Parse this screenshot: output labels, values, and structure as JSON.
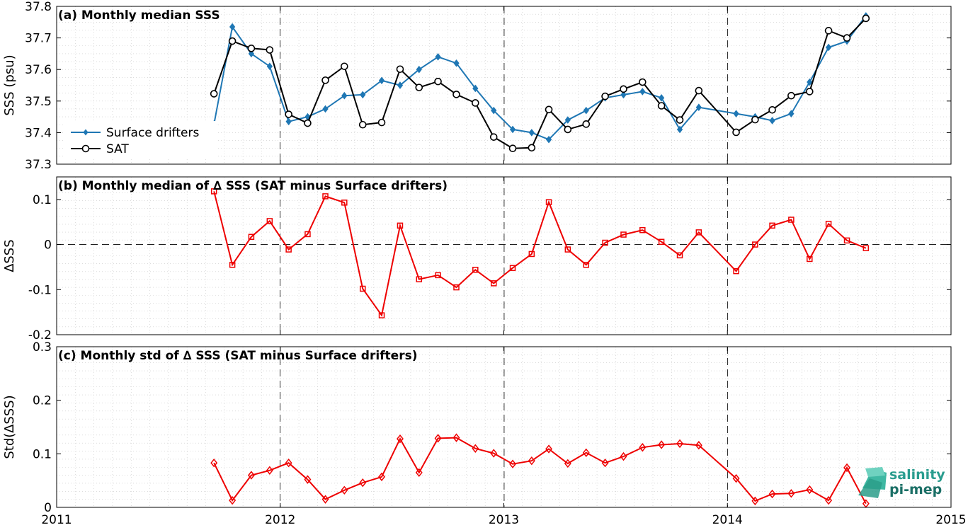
{
  "x_ticks": [
    "2011",
    "2012",
    "2013",
    "2014",
    "2015"
  ],
  "logo": {
    "line1": "salinity",
    "line2": "pi-mep"
  },
  "chart_data": [
    {
      "type": "line",
      "title": "(a) Monthly median SSS",
      "ylabel": "SSS (psu)",
      "xlim": [
        "2011-01-01",
        "2015-01-01"
      ],
      "ylim": [
        37.3,
        37.8
      ],
      "yticks": [
        "37.3",
        "37.4",
        "37.5",
        "37.6",
        "37.7",
        "37.8"
      ],
      "grid": true,
      "legend": "left",
      "series": [
        {
          "name": "Surface drifters",
          "color": "#1f77b4",
          "marker": "diamond-filled",
          "x": [
            "2011-09-15",
            "2011-10-15",
            "2011-11-15",
            "2011-12-15",
            "2012-01-15",
            "2012-02-15",
            "2012-03-15",
            "2012-04-15",
            "2012-05-15",
            "2012-06-15",
            "2012-07-15",
            "2012-08-15",
            "2012-09-15",
            "2012-10-15",
            "2012-11-15",
            "2012-12-15",
            "2013-01-15",
            "2013-02-15",
            "2013-03-15",
            "2013-04-15",
            "2013-05-15",
            "2013-06-15",
            "2013-07-15",
            "2013-08-15",
            "2013-09-15",
            "2013-10-15",
            "2013-11-15",
            "2014-01-15",
            "2014-02-15",
            "2014-03-15",
            "2014-04-15",
            "2014-05-15",
            "2014-06-15",
            "2014-07-15",
            "2014-08-15"
          ],
          "values": [
            37.427,
            37.735,
            37.65,
            37.61,
            37.435,
            37.45,
            37.475,
            37.517,
            37.52,
            37.565,
            37.55,
            37.6,
            37.64,
            37.62,
            37.54,
            37.47,
            37.41,
            37.4,
            37.378,
            37.44,
            37.47,
            37.51,
            37.52,
            37.53,
            37.51,
            37.41,
            37.48,
            37.46,
            37.45,
            37.438,
            37.46,
            37.56,
            37.67,
            37.69,
            37.77
          ]
        },
        {
          "name": "SAT",
          "color": "#000000",
          "marker": "circle-open",
          "x": [
            "2011-09-15",
            "2011-10-15",
            "2011-11-15",
            "2011-12-15",
            "2012-01-15",
            "2012-02-15",
            "2012-03-15",
            "2012-04-15",
            "2012-05-15",
            "2012-06-15",
            "2012-07-15",
            "2012-08-15",
            "2012-09-15",
            "2012-10-15",
            "2012-11-15",
            "2012-12-15",
            "2013-01-15",
            "2013-02-15",
            "2013-03-15",
            "2013-04-15",
            "2013-05-15",
            "2013-06-15",
            "2013-07-15",
            "2013-08-15",
            "2013-09-15",
            "2013-10-15",
            "2013-11-15",
            "2014-01-15",
            "2014-02-15",
            "2014-03-15",
            "2014-04-15",
            "2014-05-15",
            "2014-06-15",
            "2014-07-15",
            "2014-08-15"
          ],
          "values": [
            37.523,
            37.69,
            37.667,
            37.662,
            37.458,
            37.43,
            37.566,
            37.61,
            37.425,
            37.432,
            37.601,
            37.543,
            37.562,
            37.521,
            37.494,
            37.386,
            37.35,
            37.352,
            37.473,
            37.41,
            37.427,
            37.515,
            37.538,
            37.56,
            37.485,
            37.44,
            37.533,
            37.401,
            37.441,
            37.472,
            37.517,
            37.53,
            37.723,
            37.7,
            37.762
          ]
        }
      ]
    },
    {
      "type": "line",
      "title": "(b) Monthly median of ∆ SSS (SAT minus Surface drifters)",
      "ylabel": "∆SSS",
      "xlim": [
        "2011-01-01",
        "2015-01-01"
      ],
      "ylim": [
        -0.2,
        0.15
      ],
      "yticks": [
        "-0.2",
        "-0.1",
        "0",
        "0.1"
      ],
      "grid": true,
      "zero_line": true,
      "series": [
        {
          "color": "#ee0000",
          "marker": "square-open",
          "x": [
            "2011-09-15",
            "2011-10-15",
            "2011-11-15",
            "2011-12-15",
            "2012-01-15",
            "2012-02-15",
            "2012-03-15",
            "2012-04-15",
            "2012-05-15",
            "2012-06-15",
            "2012-07-15",
            "2012-08-15",
            "2012-09-15",
            "2012-10-15",
            "2012-11-15",
            "2012-12-15",
            "2013-01-15",
            "2013-02-15",
            "2013-03-15",
            "2013-04-15",
            "2013-05-15",
            "2013-06-15",
            "2013-07-15",
            "2013-08-15",
            "2013-09-15",
            "2013-10-15",
            "2013-11-15",
            "2014-01-15",
            "2014-02-15",
            "2014-03-15",
            "2014-04-15",
            "2014-05-15",
            "2014-06-15",
            "2014-07-15",
            "2014-08-15"
          ],
          "values": [
            0.118,
            -0.045,
            0.017,
            0.052,
            -0.011,
            0.023,
            0.107,
            0.093,
            -0.098,
            -0.157,
            0.042,
            -0.077,
            -0.068,
            -0.095,
            -0.056,
            -0.086,
            -0.052,
            -0.021,
            0.094,
            -0.011,
            -0.045,
            0.004,
            0.022,
            0.032,
            0.006,
            -0.024,
            0.027,
            -0.059,
            0.0,
            0.042,
            0.055,
            -0.032,
            0.046,
            0.009,
            -0.008
          ]
        }
      ]
    },
    {
      "type": "line",
      "title": "(c) Monthly std of ∆ SSS (SAT minus Surface drifters)",
      "ylabel": "Std(∆SSS)",
      "xlim": [
        "2011-01-01",
        "2015-01-01"
      ],
      "ylim": [
        0,
        0.3
      ],
      "yticks": [
        "0",
        "0.1",
        "0.2",
        "0.3"
      ],
      "grid": true,
      "series": [
        {
          "color": "#ee0000",
          "marker": "diamond-open",
          "x": [
            "2011-09-15",
            "2011-10-15",
            "2011-11-15",
            "2011-12-15",
            "2012-01-15",
            "2012-02-15",
            "2012-03-15",
            "2012-04-15",
            "2012-05-15",
            "2012-06-15",
            "2012-07-15",
            "2012-08-15",
            "2012-09-15",
            "2012-10-15",
            "2012-11-15",
            "2012-12-15",
            "2013-01-15",
            "2013-02-15",
            "2013-03-15",
            "2013-04-15",
            "2013-05-15",
            "2013-06-15",
            "2013-07-15",
            "2013-08-15",
            "2013-09-15",
            "2013-10-15",
            "2013-11-15",
            "2014-01-15",
            "2014-02-15",
            "2014-03-15",
            "2014-04-15",
            "2014-05-15",
            "2014-06-15",
            "2014-07-15",
            "2014-08-15"
          ],
          "values": [
            0.083,
            0.013,
            0.06,
            0.069,
            0.083,
            0.052,
            0.015,
            0.032,
            0.046,
            0.057,
            0.128,
            0.065,
            0.129,
            0.13,
            0.11,
            0.101,
            0.081,
            0.087,
            0.109,
            0.082,
            0.102,
            0.083,
            0.095,
            0.112,
            0.117,
            0.119,
            0.116,
            0.054,
            0.012,
            0.025,
            0.026,
            0.033,
            0.013,
            0.074,
            0.007
          ]
        }
      ]
    }
  ]
}
